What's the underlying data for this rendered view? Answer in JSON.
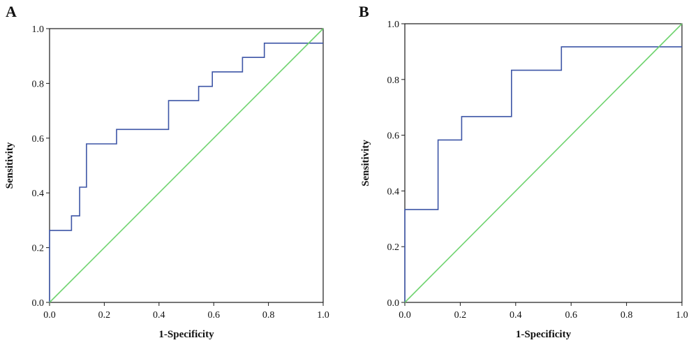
{
  "colors": {
    "roc": "#3d55a6",
    "reference": "#6fd36f"
  },
  "chart_data": [
    {
      "type": "line",
      "panel_label": "A",
      "xlabel": "1-Specificity",
      "ylabel": "Sensitivity",
      "xlim": [
        0,
        1
      ],
      "ylim": [
        0,
        1
      ],
      "x_ticks": [
        "0.0",
        "0.2",
        "0.4",
        "0.6",
        "0.8",
        "1.0"
      ],
      "y_ticks": [
        "0.0",
        "0.2",
        "0.4",
        "0.6",
        "0.8",
        "1.0"
      ],
      "grid": false,
      "series": [
        {
          "role": "roc",
          "x": [
            0,
            0,
            0.08,
            0.08,
            0.11,
            0.11,
            0.135,
            0.135,
            0.245,
            0.245,
            0.435,
            0.435,
            0.545,
            0.545,
            0.595,
            0.595,
            0.705,
            0.705,
            0.785,
            0.785,
            1.0
          ],
          "y": [
            0,
            0.263,
            0.263,
            0.316,
            0.316,
            0.421,
            0.421,
            0.579,
            0.579,
            0.632,
            0.632,
            0.737,
            0.737,
            0.789,
            0.789,
            0.842,
            0.842,
            0.895,
            0.895,
            0.947,
            0.947
          ]
        },
        {
          "role": "reference",
          "x": [
            0,
            1
          ],
          "y": [
            0,
            1
          ]
        }
      ]
    },
    {
      "type": "line",
      "panel_label": "B",
      "xlabel": "1-Specificity",
      "ylabel": "Sensitivity",
      "xlim": [
        0,
        1
      ],
      "ylim": [
        0,
        1
      ],
      "x_ticks": [
        "0.0",
        "0.2",
        "0.4",
        "0.6",
        "0.8",
        "1.0"
      ],
      "y_ticks": [
        "0.0",
        "0.2",
        "0.4",
        "0.6",
        "0.8",
        "1.0"
      ],
      "grid": false,
      "series": [
        {
          "role": "roc",
          "x": [
            0,
            0,
            0.12,
            0.12,
            0.205,
            0.205,
            0.385,
            0.385,
            0.565,
            0.565,
            1.0
          ],
          "y": [
            0,
            0.333,
            0.333,
            0.583,
            0.583,
            0.667,
            0.667,
            0.833,
            0.833,
            0.917,
            0.917
          ]
        },
        {
          "role": "reference",
          "x": [
            0,
            1
          ],
          "y": [
            0,
            1
          ]
        }
      ]
    }
  ]
}
